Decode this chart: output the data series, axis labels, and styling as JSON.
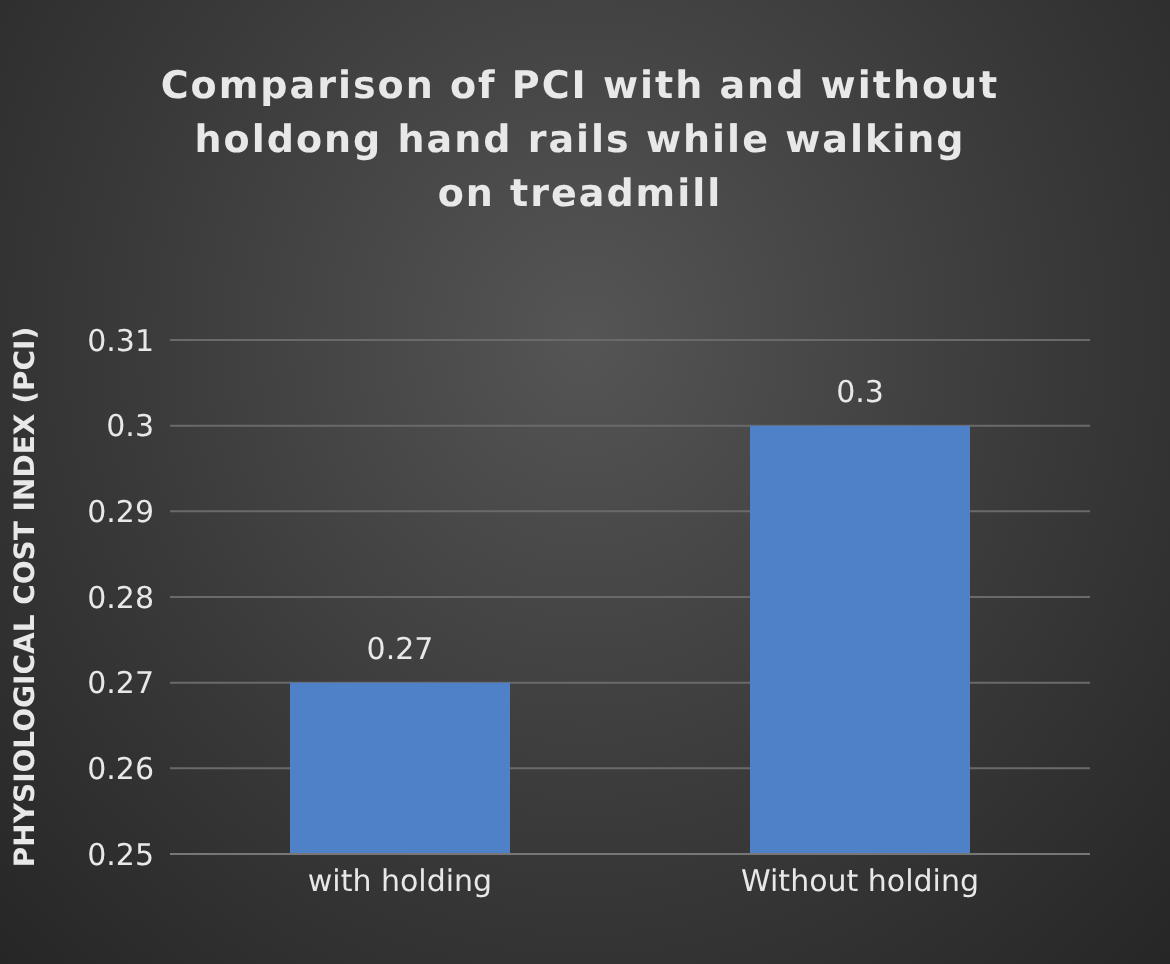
{
  "chart_data": {
    "type": "bar",
    "title": "Comparison of PCI with and without holdong hand rails while walking on treadmill",
    "ylabel": "PHYSIOLOGICAL COST INDEX (PCI)",
    "categories": [
      "with holding",
      "Without holding"
    ],
    "values": [
      0.27,
      0.3
    ],
    "color": "#4f81c9",
    "ylim": [
      0.25,
      0.31
    ],
    "yticks": [
      0.25,
      0.26,
      0.27,
      0.28,
      0.29,
      0.3,
      0.31
    ],
    "grid": "y",
    "data_labels": true
  }
}
